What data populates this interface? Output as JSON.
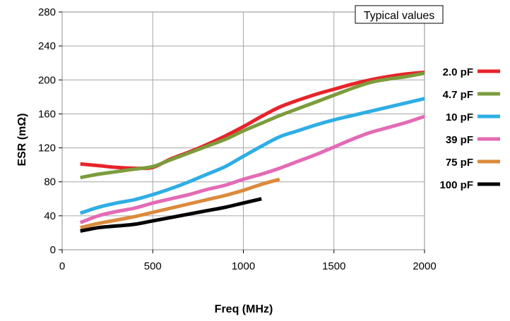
{
  "chart_data": {
    "type": "line",
    "title": "",
    "xlabel": "Freq (MHz)",
    "ylabel": "ESR (mΩ)",
    "annotation": "Typical values",
    "xlim": [
      0,
      2000
    ],
    "ylim": [
      0,
      280
    ],
    "x_ticks": [
      0,
      500,
      1000,
      1500,
      2000
    ],
    "y_ticks": [
      0,
      40,
      80,
      120,
      160,
      200,
      240,
      280
    ],
    "grid": true,
    "legend_position": "right",
    "series": [
      {
        "name": "2.0 pF",
        "color": "#e8232a",
        "x": [
          100,
          200,
          300,
          400,
          500,
          600,
          700,
          800,
          900,
          1000,
          1100,
          1200,
          1300,
          1400,
          1500,
          1600,
          1700,
          1800,
          1900,
          2000
        ],
        "y": [
          101,
          99,
          97,
          96,
          97,
          107,
          115,
          124,
          134,
          145,
          157,
          168,
          176,
          183,
          189,
          195,
          200,
          204,
          207,
          209
        ]
      },
      {
        "name": "4.7 pF",
        "color": "#7c9c3c",
        "x": [
          100,
          200,
          300,
          400,
          500,
          600,
          700,
          800,
          900,
          1000,
          1100,
          1200,
          1300,
          1400,
          1500,
          1600,
          1700,
          1800,
          1900,
          2000
        ],
        "y": [
          85,
          89,
          92,
          95,
          98,
          106,
          114,
          122,
          130,
          140,
          149,
          158,
          166,
          174,
          182,
          190,
          197,
          201,
          204,
          208
        ]
      },
      {
        "name": "10 pF",
        "color": "#2eaee4",
        "x": [
          100,
          200,
          300,
          400,
          500,
          600,
          700,
          800,
          900,
          1000,
          1100,
          1200,
          1300,
          1400,
          1500,
          1600,
          1700,
          1800,
          1900,
          2000
        ],
        "y": [
          43,
          50,
          55,
          59,
          65,
          72,
          80,
          89,
          98,
          110,
          122,
          133,
          140,
          147,
          153,
          158,
          163,
          168,
          173,
          178
        ]
      },
      {
        "name": "39 pF",
        "color": "#e36bb5",
        "x": [
          100,
          200,
          300,
          400,
          500,
          600,
          700,
          800,
          900,
          1000,
          1100,
          1200,
          1300,
          1400,
          1500,
          1600,
          1700,
          1800,
          1900,
          2000
        ],
        "y": [
          32,
          40,
          45,
          49,
          55,
          60,
          65,
          71,
          76,
          83,
          89,
          96,
          104,
          112,
          121,
          130,
          138,
          144,
          150,
          157
        ]
      },
      {
        "name": "75 pF",
        "color": "#dc8a3c",
        "x": [
          100,
          200,
          300,
          400,
          500,
          600,
          700,
          800,
          900,
          1000,
          1100,
          1200
        ],
        "y": [
          26,
          31,
          35,
          39,
          44,
          49,
          54,
          59,
          64,
          70,
          77,
          83
        ]
      },
      {
        "name": "100 pF",
        "color": "#000000",
        "x": [
          100,
          200,
          300,
          400,
          500,
          600,
          700,
          800,
          900,
          1000,
          1100
        ],
        "y": [
          22,
          26,
          28,
          30,
          34,
          38,
          42,
          46,
          50,
          55,
          60
        ]
      }
    ]
  }
}
